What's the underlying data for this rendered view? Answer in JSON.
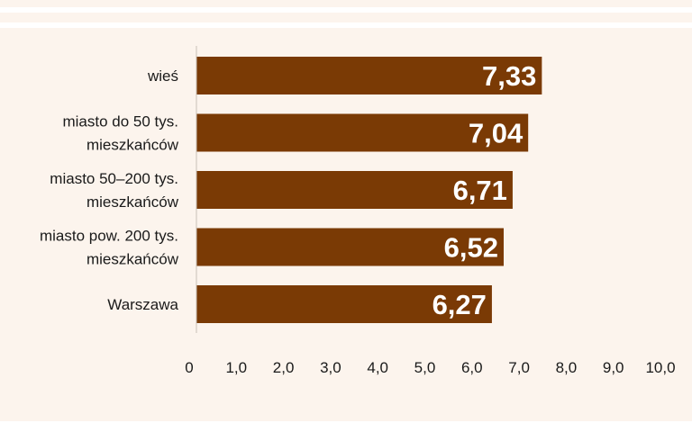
{
  "chart_data": {
    "type": "bar",
    "orientation": "horizontal",
    "categories": [
      [
        "wieś"
      ],
      [
        "miasto do 50 tys.",
        "mieszkańców"
      ],
      [
        "miasto 50–200 tys.",
        "mieszkańców"
      ],
      [
        "miasto pow. 200 tys.",
        "mieszkańców"
      ],
      [
        "Warszawa"
      ]
    ],
    "values": [
      7.33,
      7.04,
      6.71,
      6.52,
      6.27
    ],
    "value_labels": [
      "7,33",
      "7,04",
      "6,71",
      "6,52",
      "6,27"
    ],
    "xlim": [
      0,
      10
    ],
    "x_ticks": [
      "0",
      "1,0",
      "2,0",
      "3,0",
      "4,0",
      "5,0",
      "6,0",
      "7,0",
      "8,0",
      "9,0",
      "10,0"
    ],
    "bar_color": "#7a3a05",
    "background_color": "#fcf4ed",
    "grid": false,
    "title": "",
    "xlabel": "",
    "ylabel": ""
  }
}
